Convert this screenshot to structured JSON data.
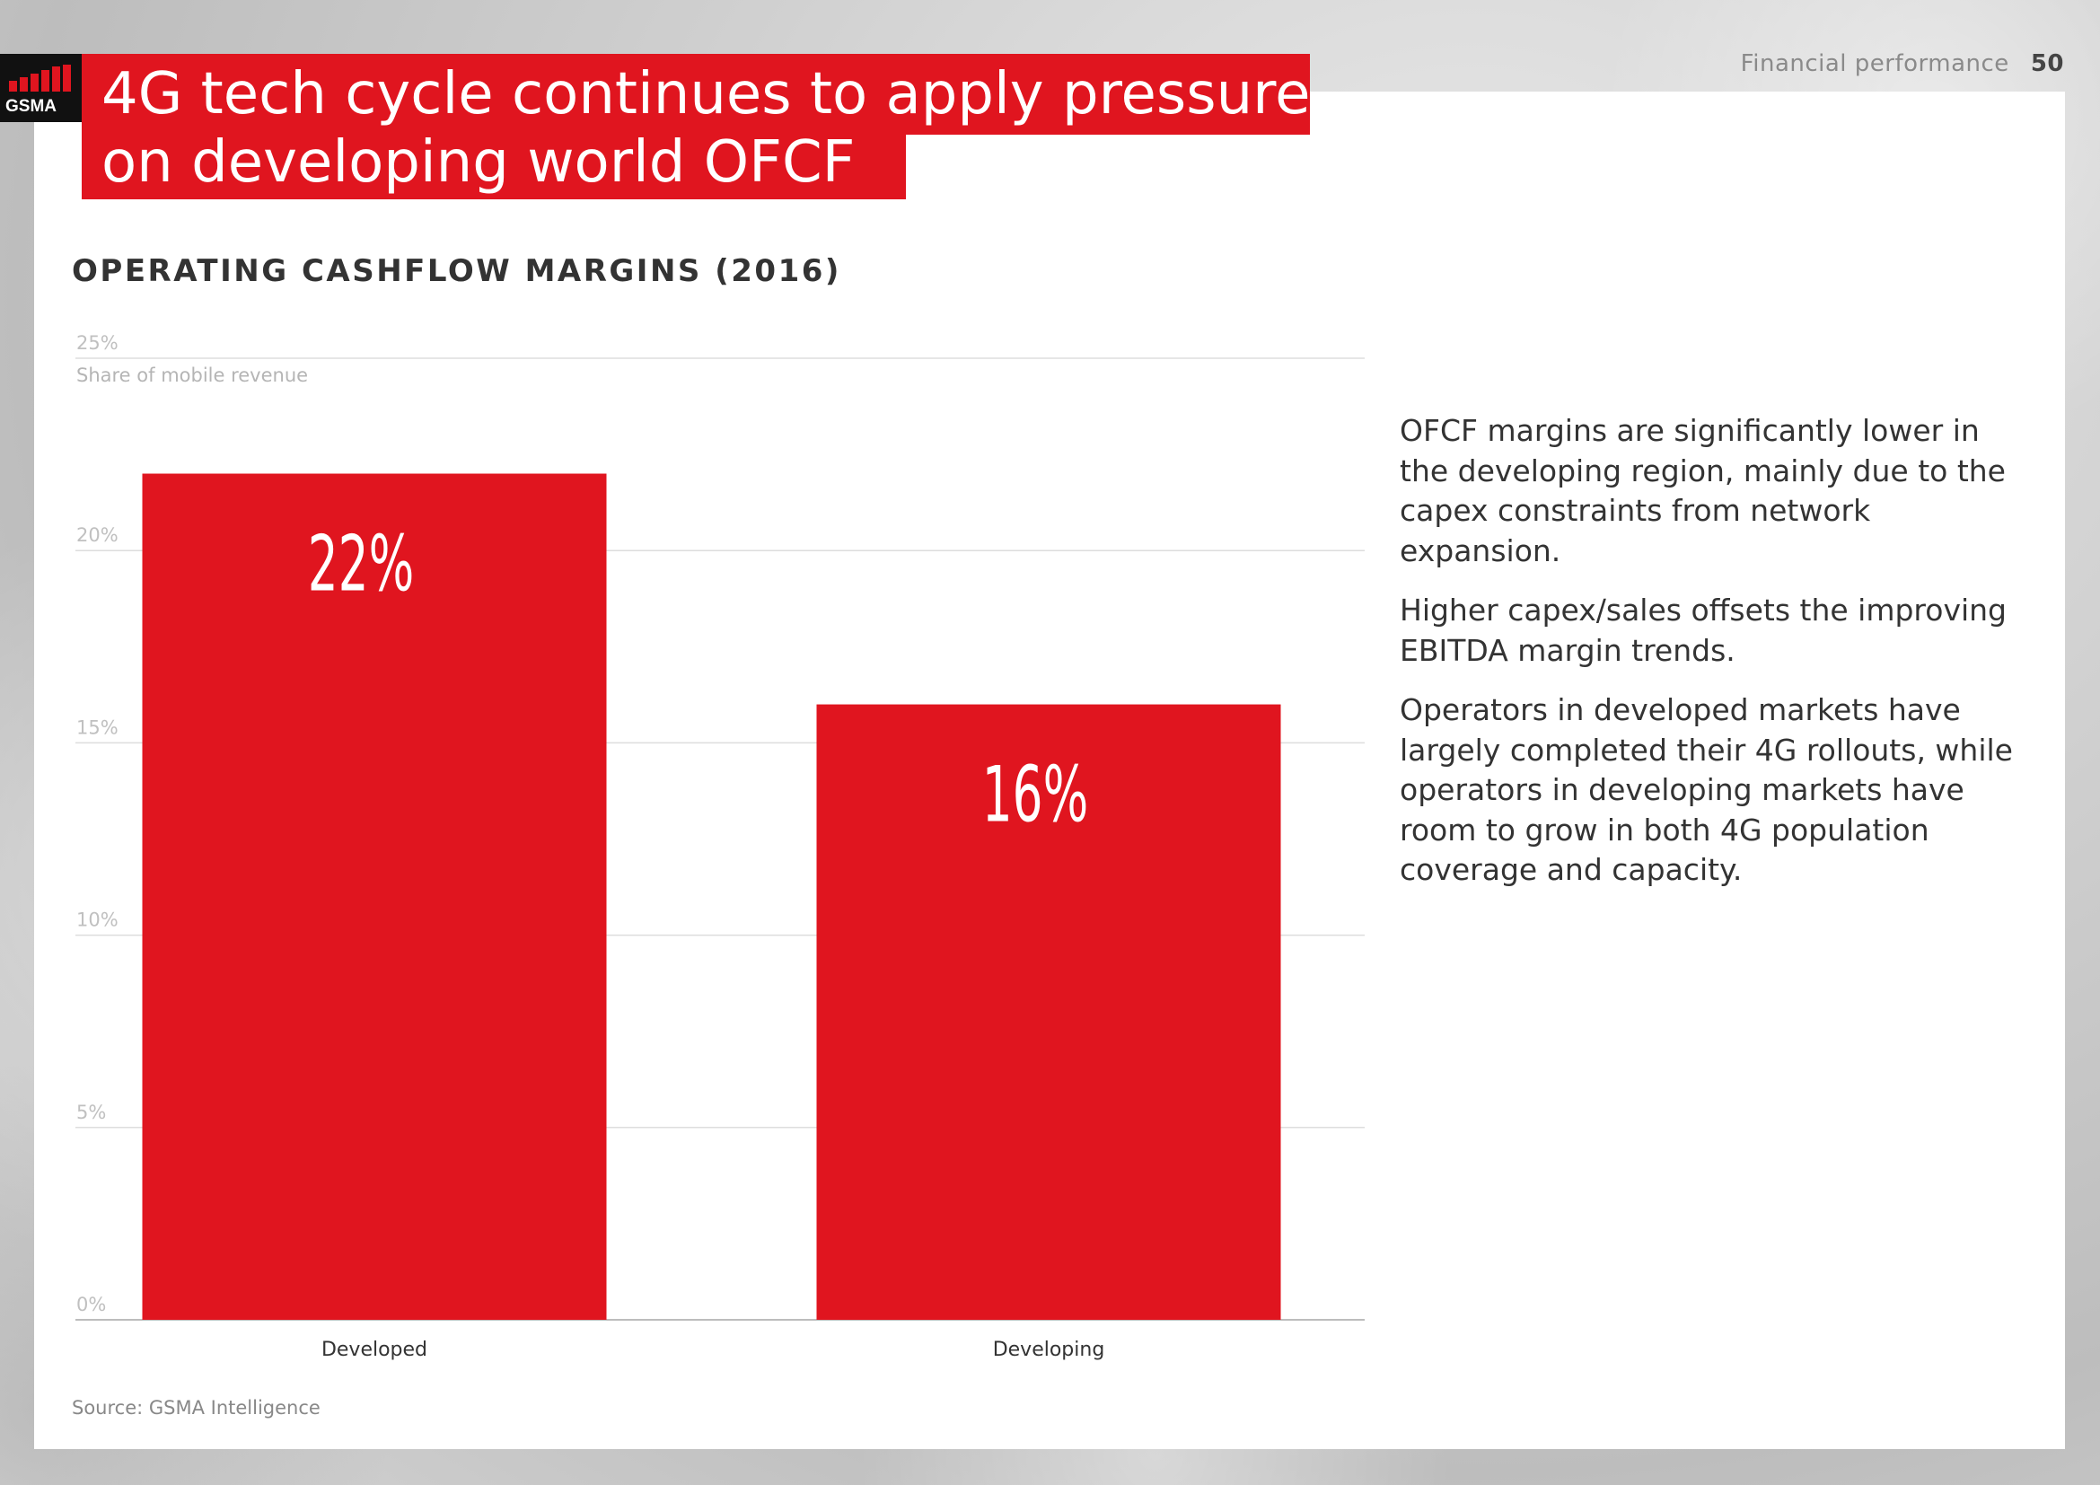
{
  "header": {
    "title_line1": "4G tech cycle continues to apply pressure",
    "title_line2": "on developing world OFCF",
    "section": "Financial performance",
    "page_number": "50",
    "logo_text": "GSMA"
  },
  "chart": {
    "heading": "OPERATING CASHFLOW MARGINS (2016)",
    "source": "Source: GSMA Intelligence"
  },
  "chart_data": {
    "type": "bar",
    "title": "OPERATING CASHFLOW MARGINS (2016)",
    "xlabel": "",
    "ylabel": "Share of mobile revenue",
    "categories": [
      "Developed",
      "Developing"
    ],
    "values": [
      22,
      16
    ],
    "data_labels": [
      "22%",
      "16%"
    ],
    "ylim": [
      0,
      25
    ],
    "yticks": [
      0,
      5,
      10,
      15,
      20,
      25
    ],
    "ytick_labels": [
      "0%",
      "5%",
      "10%",
      "15%",
      "20%",
      "25%"
    ],
    "grid": true,
    "color": "#e0151f"
  },
  "commentary": {
    "paragraphs": [
      "OFCF margins are significantly lower in the developing region, mainly due to the capex constraints from network expansion.",
      "Higher capex/sales offsets the improving EBITDA margin trends.",
      "Operators in developed markets have largely completed their 4G rollouts, while operators in developing markets have room to grow in both 4G population coverage and capacity."
    ]
  },
  "colors": {
    "brand_red": "#e0151f",
    "text_dark": "#333333",
    "gridline": "#dddddd"
  }
}
